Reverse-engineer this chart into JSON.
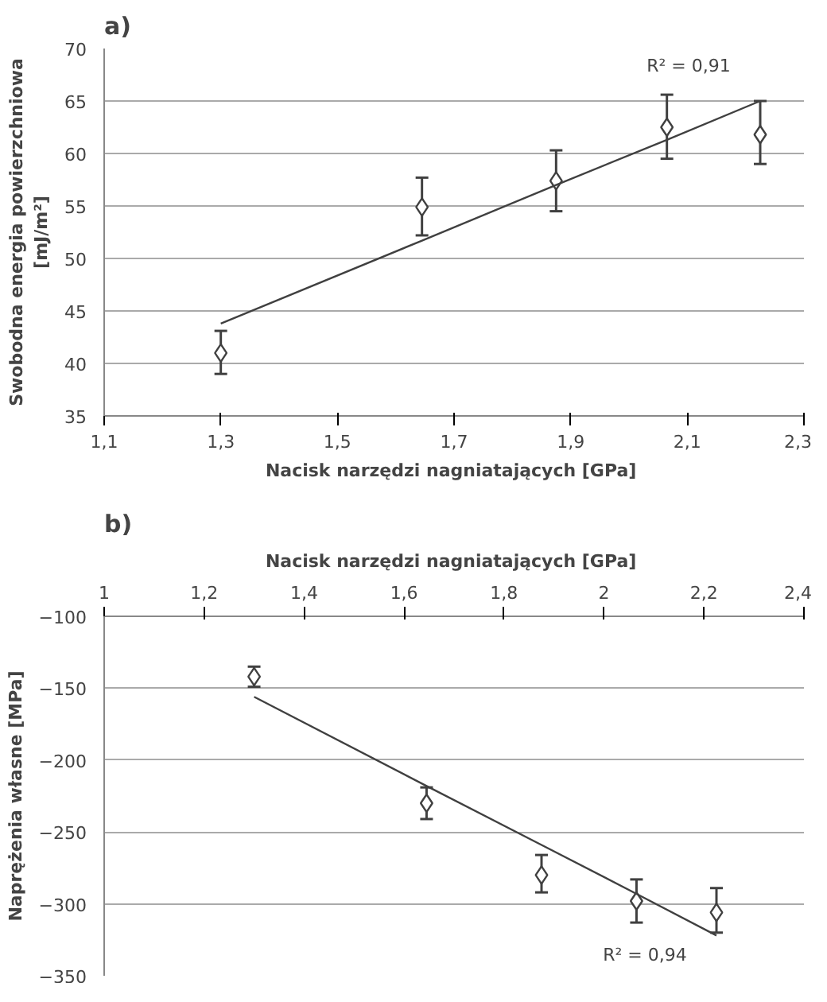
{
  "chart_data": [
    {
      "type": "scatter",
      "title": "a)",
      "xlabel": "Nacisk narzędzi nagniatających  [GPa]",
      "ylabel": "Swobodna energia powierzchniowa\n[mJ/m²]",
      "x": [
        1.3,
        1.645,
        1.875,
        2.065,
        2.225
      ],
      "xlim": [
        1.1,
        2.3
      ],
      "xticks": [
        {
          "value": 1.1,
          "label": "1,1"
        },
        {
          "value": 1.3,
          "label": "1,3"
        },
        {
          "value": 1.5,
          "label": "1,5"
        },
        {
          "value": 1.7,
          "label": "1,7"
        },
        {
          "value": 1.9,
          "label": "1,9"
        },
        {
          "value": 2.1,
          "label": "2,1"
        },
        {
          "value": 2.3,
          "label": "2,3"
        }
      ],
      "ylim": [
        35,
        70
      ],
      "yticks": [
        35,
        40,
        45,
        50,
        55,
        60,
        65,
        70
      ],
      "grid": "y",
      "series": [
        {
          "marker": "diamond",
          "color": "#404040",
          "values": [
            41,
            54.9,
            57.4,
            62.5,
            61.8
          ],
          "errors": [
            [
              39,
              43.1
            ],
            [
              52.2,
              57.7
            ],
            [
              54.5,
              60.3
            ],
            [
              59.5,
              65.6
            ],
            [
              59,
              65
            ]
          ]
        },
        {
          "type": "line",
          "color": "#404040",
          "values": [
            43.8,
            51.7,
            57.0,
            61.3,
            65
          ]
        }
      ],
      "annotations": [
        "R² = 0,91"
      ]
    },
    {
      "type": "scatter",
      "title": "b)",
      "xlabel": "Nacisk narzędzi nagniatających  [GPa]",
      "ylabel": "Naprężenia własne [MPa]",
      "x": [
        1.3,
        1.645,
        1.875,
        2.065,
        2.225
      ],
      "xlim": [
        1,
        2.4
      ],
      "xticks": [
        1,
        {
          "value": 1.2,
          "label": "1,2"
        },
        {
          "value": 1.4,
          "label": "1,4"
        },
        {
          "value": 1.6,
          "label": "1,6"
        },
        {
          "value": 1.8,
          "label": "1,8"
        },
        2,
        {
          "value": 2.2,
          "label": "2,2"
        },
        {
          "value": 2.4,
          "label": "2,4"
        }
      ],
      "ylim": [
        -350,
        -100
      ],
      "yticks": [
        -350,
        -300,
        -250,
        -200,
        -150,
        -100
      ],
      "grid": "y",
      "series": [
        {
          "marker": "diamond",
          "color": "#404040",
          "values": [
            -142,
            -230,
            -280,
            -298,
            -306
          ],
          "errors": [
            [
              -149,
              -135
            ],
            [
              -241,
              -219
            ],
            [
              -292,
              -266
            ],
            [
              -313,
              -283
            ],
            [
              -320,
              -289
            ]
          ]
        },
        {
          "type": "line",
          "color": "#404040",
          "values": [
            -156,
            -218,
            -259,
            -293,
            -322
          ]
        }
      ],
      "annotations": [
        "R² = 0,94"
      ]
    }
  ]
}
